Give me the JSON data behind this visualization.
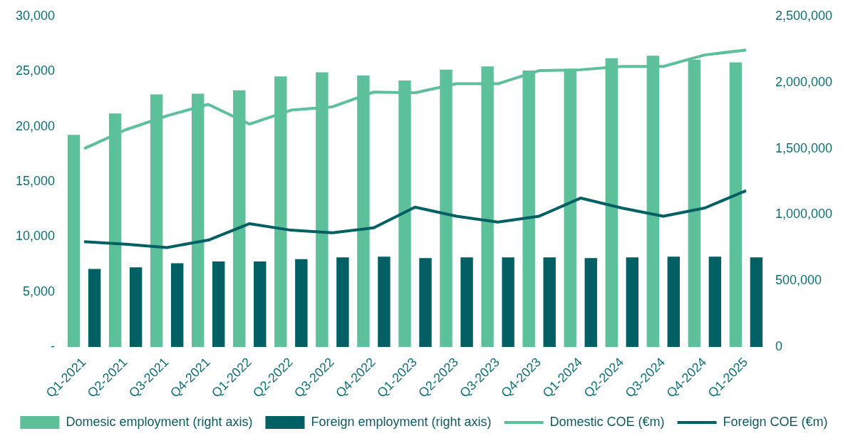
{
  "chart_data": {
    "type": "bar",
    "categories": [
      "Q1-2021",
      "Q2-2021",
      "Q3-2021",
      "Q4-2021",
      "Q1-2022",
      "Q2-2022",
      "Q3-2022",
      "Q4-2022",
      "Q1-2023",
      "Q2-2023",
      "Q3-2023",
      "Q4-2023",
      "Q1-2024",
      "Q2-2024",
      "Q3-2024",
      "Q4-2024",
      "Q1-2025"
    ],
    "series": [
      {
        "name": "Domesic employment (right axis)",
        "axis": "y2",
        "color": "#5cc09b",
        "values": [
          1604000,
          1766000,
          1909000,
          1915000,
          1940000,
          2046000,
          2077000,
          2052000,
          2015000,
          2096000,
          2121000,
          2090000,
          2096000,
          2183000,
          2201000,
          2170000,
          2152000
        ]
      },
      {
        "name": "Foreign employment (right axis)",
        "axis": "y2",
        "color": "#006064",
        "values": [
          591000,
          603000,
          634000,
          647000,
          647000,
          665000,
          678000,
          684000,
          672000,
          678000,
          678000,
          678000,
          672000,
          678000,
          684000,
          684000,
          678000
        ]
      },
      {
        "name": "Domestic COE (€m)",
        "type": "line",
        "color": "#5cc09b",
        "values": [
          18000,
          19700,
          20970,
          22010,
          20220,
          21490,
          21790,
          23130,
          23060,
          23880,
          23880,
          25070,
          25150,
          25450,
          25450,
          26490,
          26940
        ]
      },
      {
        "name": "Foreign COE (€m)",
        "type": "line",
        "color": "#006064",
        "values": [
          9550,
          9330,
          9030,
          9700,
          11190,
          10600,
          10370,
          10820,
          12690,
          11870,
          11340,
          11870,
          13510,
          12610,
          11870,
          12610,
          14180
        ]
      }
    ],
    "ylim": [
      0,
      30000
    ],
    "yticks": [
      {
        "value": 0,
        "label": "-"
      },
      {
        "value": 5000,
        "label": "5,000"
      },
      {
        "value": 10000,
        "label": "10,000"
      },
      {
        "value": 15000,
        "label": "15,000"
      },
      {
        "value": 20000,
        "label": "20,000"
      },
      {
        "value": 25000,
        "label": "25,000"
      },
      {
        "value": 30000,
        "label": "30,000"
      }
    ],
    "y2lim": [
      0,
      2500000
    ],
    "y2ticks": [
      0,
      {
        "value": 500000,
        "label": "500,000"
      },
      {
        "value": 1000000,
        "label": "1,000,000"
      },
      {
        "value": 1500000,
        "label": "1,500,000"
      },
      {
        "value": 2000000,
        "label": "2,000,000"
      },
      {
        "value": 2500000,
        "label": "2,500,000"
      }
    ],
    "legend": "bottom",
    "grid": false,
    "marker": "none"
  }
}
